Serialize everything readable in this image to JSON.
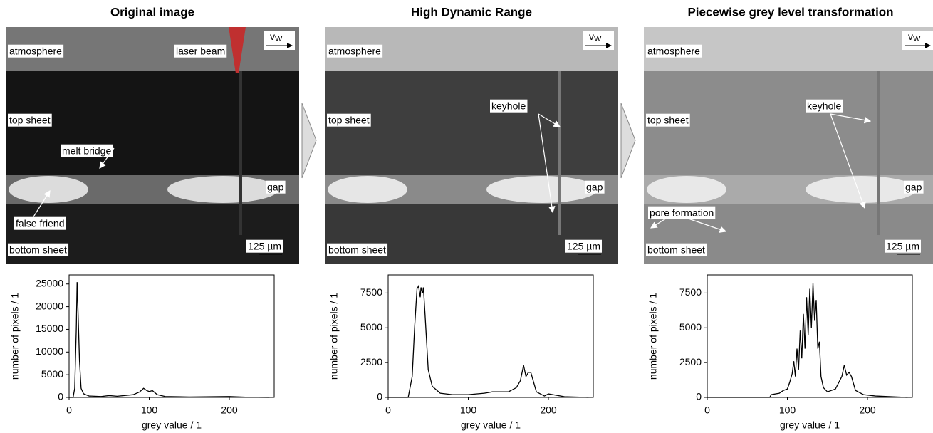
{
  "images": [
    {
      "title": "Original image",
      "labels": [
        "atmosphere",
        "laser beam",
        "top sheet",
        "melt bridge",
        "gap",
        "false friend",
        "bottom sheet"
      ],
      "velocity": {
        "symbol": "v",
        "subscript": "W"
      },
      "scale_bar": "125 µm"
    },
    {
      "title": "High Dynamic Range",
      "labels": [
        "atmosphere",
        "top sheet",
        "keyhole",
        "gap",
        "bottom sheet"
      ],
      "velocity": {
        "symbol": "v",
        "subscript": "W"
      },
      "scale_bar": "125 µm"
    },
    {
      "title": "Piecewise grey level transformation",
      "labels": [
        "atmosphere",
        "top sheet",
        "keyhole",
        "gap",
        "pore formation",
        "bottom sheet"
      ],
      "velocity": {
        "symbol": "v",
        "subscript": "W"
      },
      "scale_bar": "125 µm"
    }
  ],
  "chart_data": [
    {
      "type": "line",
      "x": [
        0,
        5,
        7,
        9,
        10,
        11,
        13,
        15,
        18,
        25,
        40,
        50,
        60,
        80,
        88,
        93,
        97,
        100,
        104,
        110,
        120,
        150,
        200,
        220,
        250
      ],
      "series": [
        {
          "color": "#000000",
          "values": [
            0,
            0,
            2000,
            15000,
            25400,
            20000,
            8000,
            2000,
            800,
            300,
            200,
            400,
            250,
            600,
            1200,
            2000,
            1500,
            1300,
            1500,
            600,
            200,
            100,
            200,
            50,
            0
          ]
        }
      ],
      "xlim": [
        0,
        256
      ],
      "ylim": [
        0,
        27000
      ],
      "xticks": [
        0,
        100,
        200
      ],
      "yticks": [
        0,
        5000,
        10000,
        15000,
        20000,
        25000
      ],
      "xlabel": "grey value / 1",
      "ylabel": "number of pixels / 1"
    },
    {
      "type": "line",
      "x": [
        0,
        25,
        30,
        33,
        36,
        38,
        40,
        41,
        43,
        44,
        46,
        48,
        50,
        55,
        65,
        80,
        100,
        120,
        130,
        150,
        160,
        165,
        169,
        172,
        175,
        178,
        181,
        185,
        195,
        200,
        220,
        250
      ],
      "series": [
        {
          "color": "#000000",
          "values": [
            0,
            0,
            1500,
            5000,
            7800,
            8000,
            7200,
            7900,
            7500,
            7900,
            6000,
            4000,
            2000,
            800,
            300,
            200,
            200,
            300,
            400,
            400,
            700,
            1200,
            2300,
            1500,
            1800,
            1800,
            1200,
            400,
            100,
            250,
            50,
            0
          ]
        }
      ],
      "xlim": [
        0,
        256
      ],
      "ylim": [
        0,
        8800
      ],
      "xticks": [
        0,
        100,
        200
      ],
      "yticks": [
        0,
        2500,
        5000,
        7500
      ],
      "xlabel": "grey value / 1",
      "ylabel": "number of pixels / 1"
    },
    {
      "type": "line",
      "x": [
        0,
        78,
        80,
        90,
        95,
        100,
        103,
        106,
        108,
        110,
        112,
        114,
        116,
        118,
        120,
        122,
        124,
        126,
        128,
        130,
        132,
        134,
        136,
        138,
        140,
        142,
        145,
        150,
        160,
        168,
        171,
        174,
        177,
        180,
        185,
        195,
        210,
        250
      ],
      "series": [
        {
          "color": "#000000",
          "values": [
            0,
            0,
            200,
            300,
            500,
            600,
            1100,
            1700,
            2600,
            1500,
            3500,
            2000,
            4800,
            2800,
            6000,
            3500,
            7200,
            4500,
            7800,
            5000,
            8200,
            5500,
            7000,
            3500,
            4000,
            1500,
            700,
            400,
            600,
            1500,
            2300,
            1600,
            1800,
            1500,
            500,
            200,
            100,
            0
          ]
        }
      ],
      "xlim": [
        0,
        256
      ],
      "ylim": [
        0,
        8800
      ],
      "xticks": [
        0,
        100,
        200
      ],
      "yticks": [
        0,
        2500,
        5000,
        7500
      ],
      "xlabel": "grey value / 1",
      "ylabel": "number of pixels / 1"
    }
  ]
}
